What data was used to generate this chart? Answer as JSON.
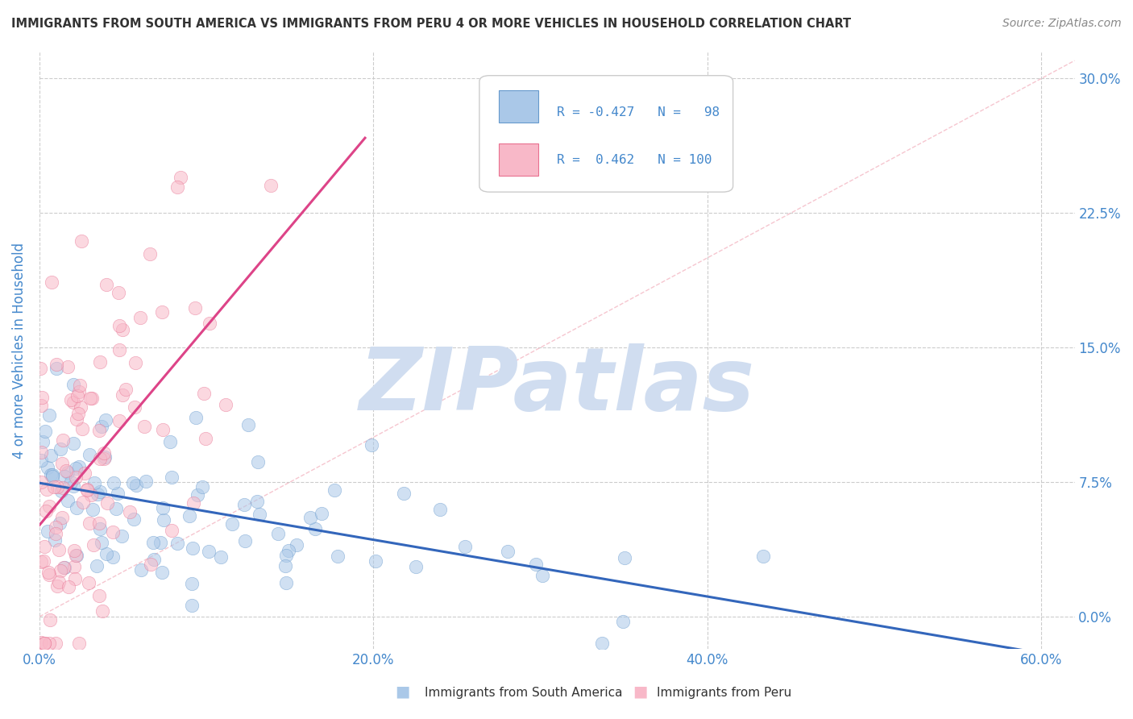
{
  "title": "IMMIGRANTS FROM SOUTH AMERICA VS IMMIGRANTS FROM PERU 4 OR MORE VEHICLES IN HOUSEHOLD CORRELATION CHART",
  "source": "Source: ZipAtlas.com",
  "ylabel": "4 or more Vehicles in Household",
  "xlim": [
    0.0,
    0.62
  ],
  "ylim": [
    -0.018,
    0.315
  ],
  "xtick_vals": [
    0.0,
    0.2,
    0.4,
    0.6
  ],
  "xtick_labels": [
    "0.0%",
    "20.0%",
    "40.0%",
    "60.0%"
  ],
  "ytick_vals": [
    0.0,
    0.075,
    0.15,
    0.225,
    0.3
  ],
  "ytick_labels": [
    "0.0%",
    "7.5%",
    "15.0%",
    "22.5%",
    "30.0%"
  ],
  "series": [
    {
      "name": "Immigrants from South America",
      "color": "#aac8e8",
      "edge_color": "#6699cc",
      "R": -0.427,
      "N": 98,
      "trend_color": "#3366bb"
    },
    {
      "name": "Immigrants from Peru",
      "color": "#f8b8c8",
      "edge_color": "#e87090",
      "R": 0.462,
      "N": 100,
      "trend_color": "#dd4488"
    }
  ],
  "watermark": "ZIPatlas",
  "watermark_color": "#d0ddf0",
  "background_color": "#ffffff",
  "grid_color": "#cccccc",
  "title_color": "#333333",
  "axis_label_color": "#4488cc",
  "tick_label_color": "#4488cc",
  "legend_text_color": "#4488cc",
  "source_color": "#888888"
}
